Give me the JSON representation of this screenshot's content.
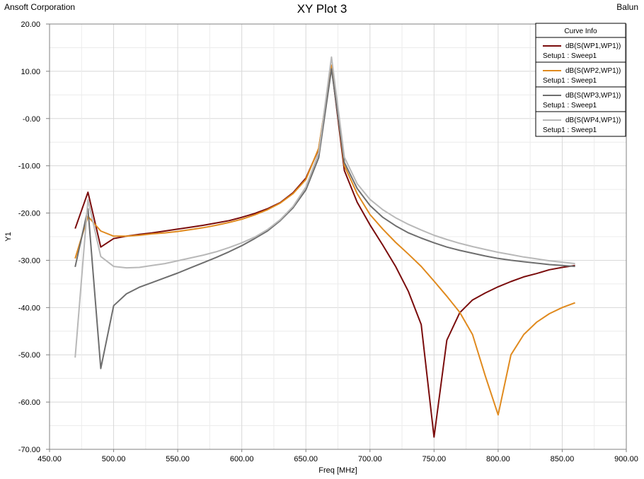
{
  "header": {
    "company": "Ansoft Corporation",
    "title": "XY Plot 3",
    "project": "Balun"
  },
  "legend": {
    "title": "Curve Info"
  },
  "chart_data": {
    "type": "line",
    "title": "XY Plot 3",
    "xlabel": "Freq [MHz]",
    "ylabel": "Y1",
    "xlim": [
      450,
      900
    ],
    "ylim": [
      -70,
      20
    ],
    "xticks": [
      "450.00",
      "500.00",
      "550.00",
      "600.00",
      "650.00",
      "700.00",
      "750.00",
      "800.00",
      "850.00",
      "900.00"
    ],
    "yticks": [
      "20.00",
      "10.00",
      "-0.00",
      "-10.00",
      "-20.00",
      "-30.00",
      "-40.00",
      "-50.00",
      "-60.00",
      "-70.00"
    ],
    "grid": true,
    "legend_position": "top-right",
    "x": [
      470,
      480,
      490,
      500,
      510,
      520,
      530,
      540,
      550,
      560,
      570,
      580,
      590,
      600,
      610,
      620,
      630,
      640,
      650,
      660,
      670,
      680,
      690,
      700,
      710,
      720,
      730,
      740,
      750,
      760,
      770,
      780,
      790,
      800,
      810,
      820,
      830,
      840,
      850,
      860
    ],
    "series": [
      {
        "name": "dB(S(WP1,WP1))",
        "sub": "Setup1 : Sweep1",
        "color": "#7a0c0c",
        "values": [
          -23.3,
          -15.6,
          -27.2,
          -25.4,
          -24.9,
          -24.5,
          -24.2,
          -23.8,
          -23.4,
          -23.0,
          -22.6,
          -22.1,
          -21.6,
          -20.9,
          -20.1,
          -19.1,
          -17.8,
          -15.7,
          -12.6,
          -6.5,
          11.0,
          -11.0,
          -17.7,
          -22.5,
          -26.8,
          -31.3,
          -36.6,
          -43.6,
          -67.4,
          -46.9,
          -41.1,
          -38.4,
          -36.9,
          -35.6,
          -34.5,
          -33.5,
          -32.8,
          -32.0,
          -31.5,
          -31.1
        ]
      },
      {
        "name": "dB(S(WP2,WP1))",
        "sub": "Setup1 : Sweep1",
        "color": "#e08a1e",
        "values": [
          -29.6,
          -20.7,
          -23.8,
          -24.9,
          -24.9,
          -24.7,
          -24.4,
          -24.2,
          -23.9,
          -23.5,
          -23.1,
          -22.6,
          -22.0,
          -21.3,
          -20.4,
          -19.3,
          -17.9,
          -15.9,
          -12.9,
          -6.3,
          11.3,
          -10.0,
          -15.9,
          -20.3,
          -23.4,
          -26.2,
          -28.7,
          -31.3,
          -34.4,
          -37.6,
          -41.0,
          -45.7,
          -54.5,
          -62.7,
          -50.0,
          -45.7,
          -43.1,
          -41.3,
          -40.0,
          -39.0
        ]
      },
      {
        "name": "dB(S(WP3,WP1))",
        "sub": "Setup1 : Sweep1",
        "color": "#6e6e6e",
        "values": [
          -31.4,
          -19.1,
          -52.9,
          -39.6,
          -37.1,
          -35.7,
          -34.7,
          -33.7,
          -32.7,
          -31.6,
          -30.5,
          -29.4,
          -28.2,
          -26.9,
          -25.4,
          -23.8,
          -21.6,
          -18.9,
          -15.1,
          -8.3,
          10.5,
          -9.3,
          -14.8,
          -18.4,
          -20.9,
          -22.7,
          -24.2,
          -25.3,
          -26.3,
          -27.2,
          -27.9,
          -28.5,
          -29.1,
          -29.6,
          -30.0,
          -30.3,
          -30.6,
          -30.9,
          -31.1,
          -31.3
        ]
      },
      {
        "name": "dB(S(WP4,WP1))",
        "sub": "Setup1 : Sweep1",
        "color": "#b8b8b8",
        "values": [
          -50.6,
          -17.2,
          -29.2,
          -31.3,
          -31.6,
          -31.5,
          -31.1,
          -30.7,
          -30.1,
          -29.5,
          -28.9,
          -28.2,
          -27.3,
          -26.3,
          -25.1,
          -23.5,
          -21.4,
          -18.6,
          -14.5,
          -7.3,
          13.0,
          -8.2,
          -13.8,
          -17.1,
          -19.3,
          -21.0,
          -22.4,
          -23.6,
          -24.7,
          -25.6,
          -26.4,
          -27.1,
          -27.7,
          -28.3,
          -28.8,
          -29.3,
          -29.7,
          -30.1,
          -30.4,
          -30.7
        ]
      }
    ]
  }
}
